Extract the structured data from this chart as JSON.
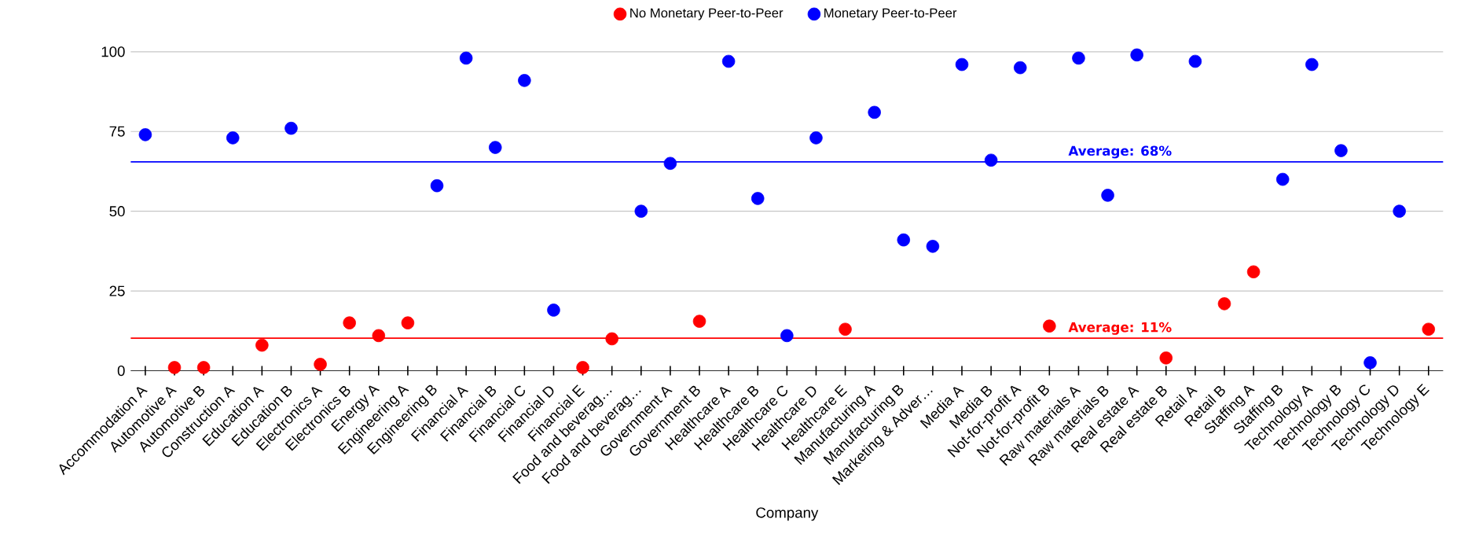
{
  "chart_data": {
    "type": "scatter",
    "xlabel": "Company",
    "categories": [
      "Accommodation A",
      "Automotive A",
      "Automotive B",
      "Construction A",
      "Education A",
      "Education B",
      "Electronics A",
      "Electronics B",
      "Energy A",
      "Engineering A",
      "Engineering B",
      "Financial A",
      "Financial B",
      "Financial C",
      "Financial D",
      "Financial E",
      "Food and beverag…",
      "Food and beverag…",
      "Government A",
      "Government B",
      "Healthcare A",
      "Healthcare B",
      "Healthcare C",
      "Healthcare D",
      "Healthcare E",
      "Manufacturing A",
      "Manufacturing B",
      "Marketing & Adver…",
      "Media A",
      "Media B",
      "Not-for-profit A",
      "Not-for-profit B",
      "Raw materials A",
      "Raw materials B",
      "Real estate A",
      "Real estate B",
      "Retail A",
      "Retail B",
      "Staffing A",
      "Staffing B",
      "Technology A",
      "Technology B",
      "Technology C",
      "Technology D",
      "Technology E"
    ],
    "series": [
      {
        "name": "No Monetary Peer-to-Peer",
        "color": "#ff0000",
        "values": [
          null,
          1,
          1,
          null,
          8,
          null,
          2,
          15,
          11,
          15,
          null,
          null,
          null,
          null,
          null,
          1,
          10,
          null,
          null,
          15.5,
          null,
          null,
          null,
          null,
          13,
          null,
          null,
          null,
          null,
          null,
          null,
          14,
          null,
          null,
          null,
          4,
          null,
          21,
          31,
          null,
          null,
          null,
          null,
          null,
          13
        ]
      },
      {
        "name": "Monetary Peer-to-Peer",
        "color": "#0000ff",
        "values": [
          74,
          null,
          null,
          73,
          null,
          76,
          null,
          null,
          null,
          null,
          58,
          98,
          70,
          91,
          19,
          null,
          null,
          50,
          65,
          null,
          97,
          54,
          11,
          73,
          null,
          81,
          41,
          39,
          96,
          66,
          95,
          null,
          98,
          55,
          99,
          null,
          97,
          null,
          null,
          60,
          96,
          69,
          2.5,
          50,
          null
        ]
      }
    ],
    "ylim": [
      0,
      100
    ],
    "yticks": [
      0,
      25,
      50,
      75,
      100
    ],
    "ref_lines": [
      {
        "axis": "y",
        "value": 65.5,
        "color": "#0000ff"
      },
      {
        "axis": "y",
        "value": 10.2,
        "color": "#ff0000"
      }
    ],
    "annotations": [
      {
        "text": "Average: 68%",
        "x": "Raw materials B",
        "y": 65.5
      },
      {
        "text": "Average: 11%",
        "x": "Raw materials B",
        "y": 10.2
      }
    ],
    "grid": "y",
    "legend": "top",
    "marker": "circle"
  }
}
